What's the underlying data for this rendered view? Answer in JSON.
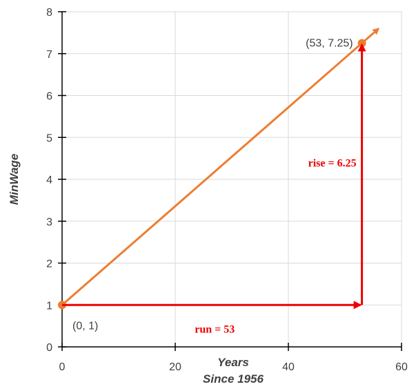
{
  "chart_data": {
    "type": "line",
    "title": "",
    "xlabel_line1": "Years",
    "xlabel_line2": "Since 1956",
    "ylabel": "MinWage",
    "xlim": [
      0,
      60
    ],
    "ylim": [
      0,
      8
    ],
    "x_ticks": [
      0,
      20,
      40,
      60
    ],
    "y_ticks": [
      0,
      1,
      2,
      3,
      4,
      5,
      6,
      7,
      8
    ],
    "grid": true,
    "series": [
      {
        "points": [
          {
            "x": 0,
            "y": 1
          },
          {
            "x": 53,
            "y": 7.25
          }
        ],
        "color": "#ed7d31"
      }
    ],
    "point_labels": [
      {
        "x": 0,
        "y": 1,
        "text": "(0, 1)"
      },
      {
        "x": 53,
        "y": 7.25,
        "text": "(53, 7.25)"
      }
    ],
    "annotations": {
      "run": {
        "text": "run = 53",
        "from": [
          0,
          1
        ],
        "to": [
          53,
          1
        ]
      },
      "rise": {
        "text": "rise = 6.25",
        "from": [
          53,
          1
        ],
        "to": [
          53,
          7.25
        ]
      },
      "color": "#ee0000"
    }
  }
}
